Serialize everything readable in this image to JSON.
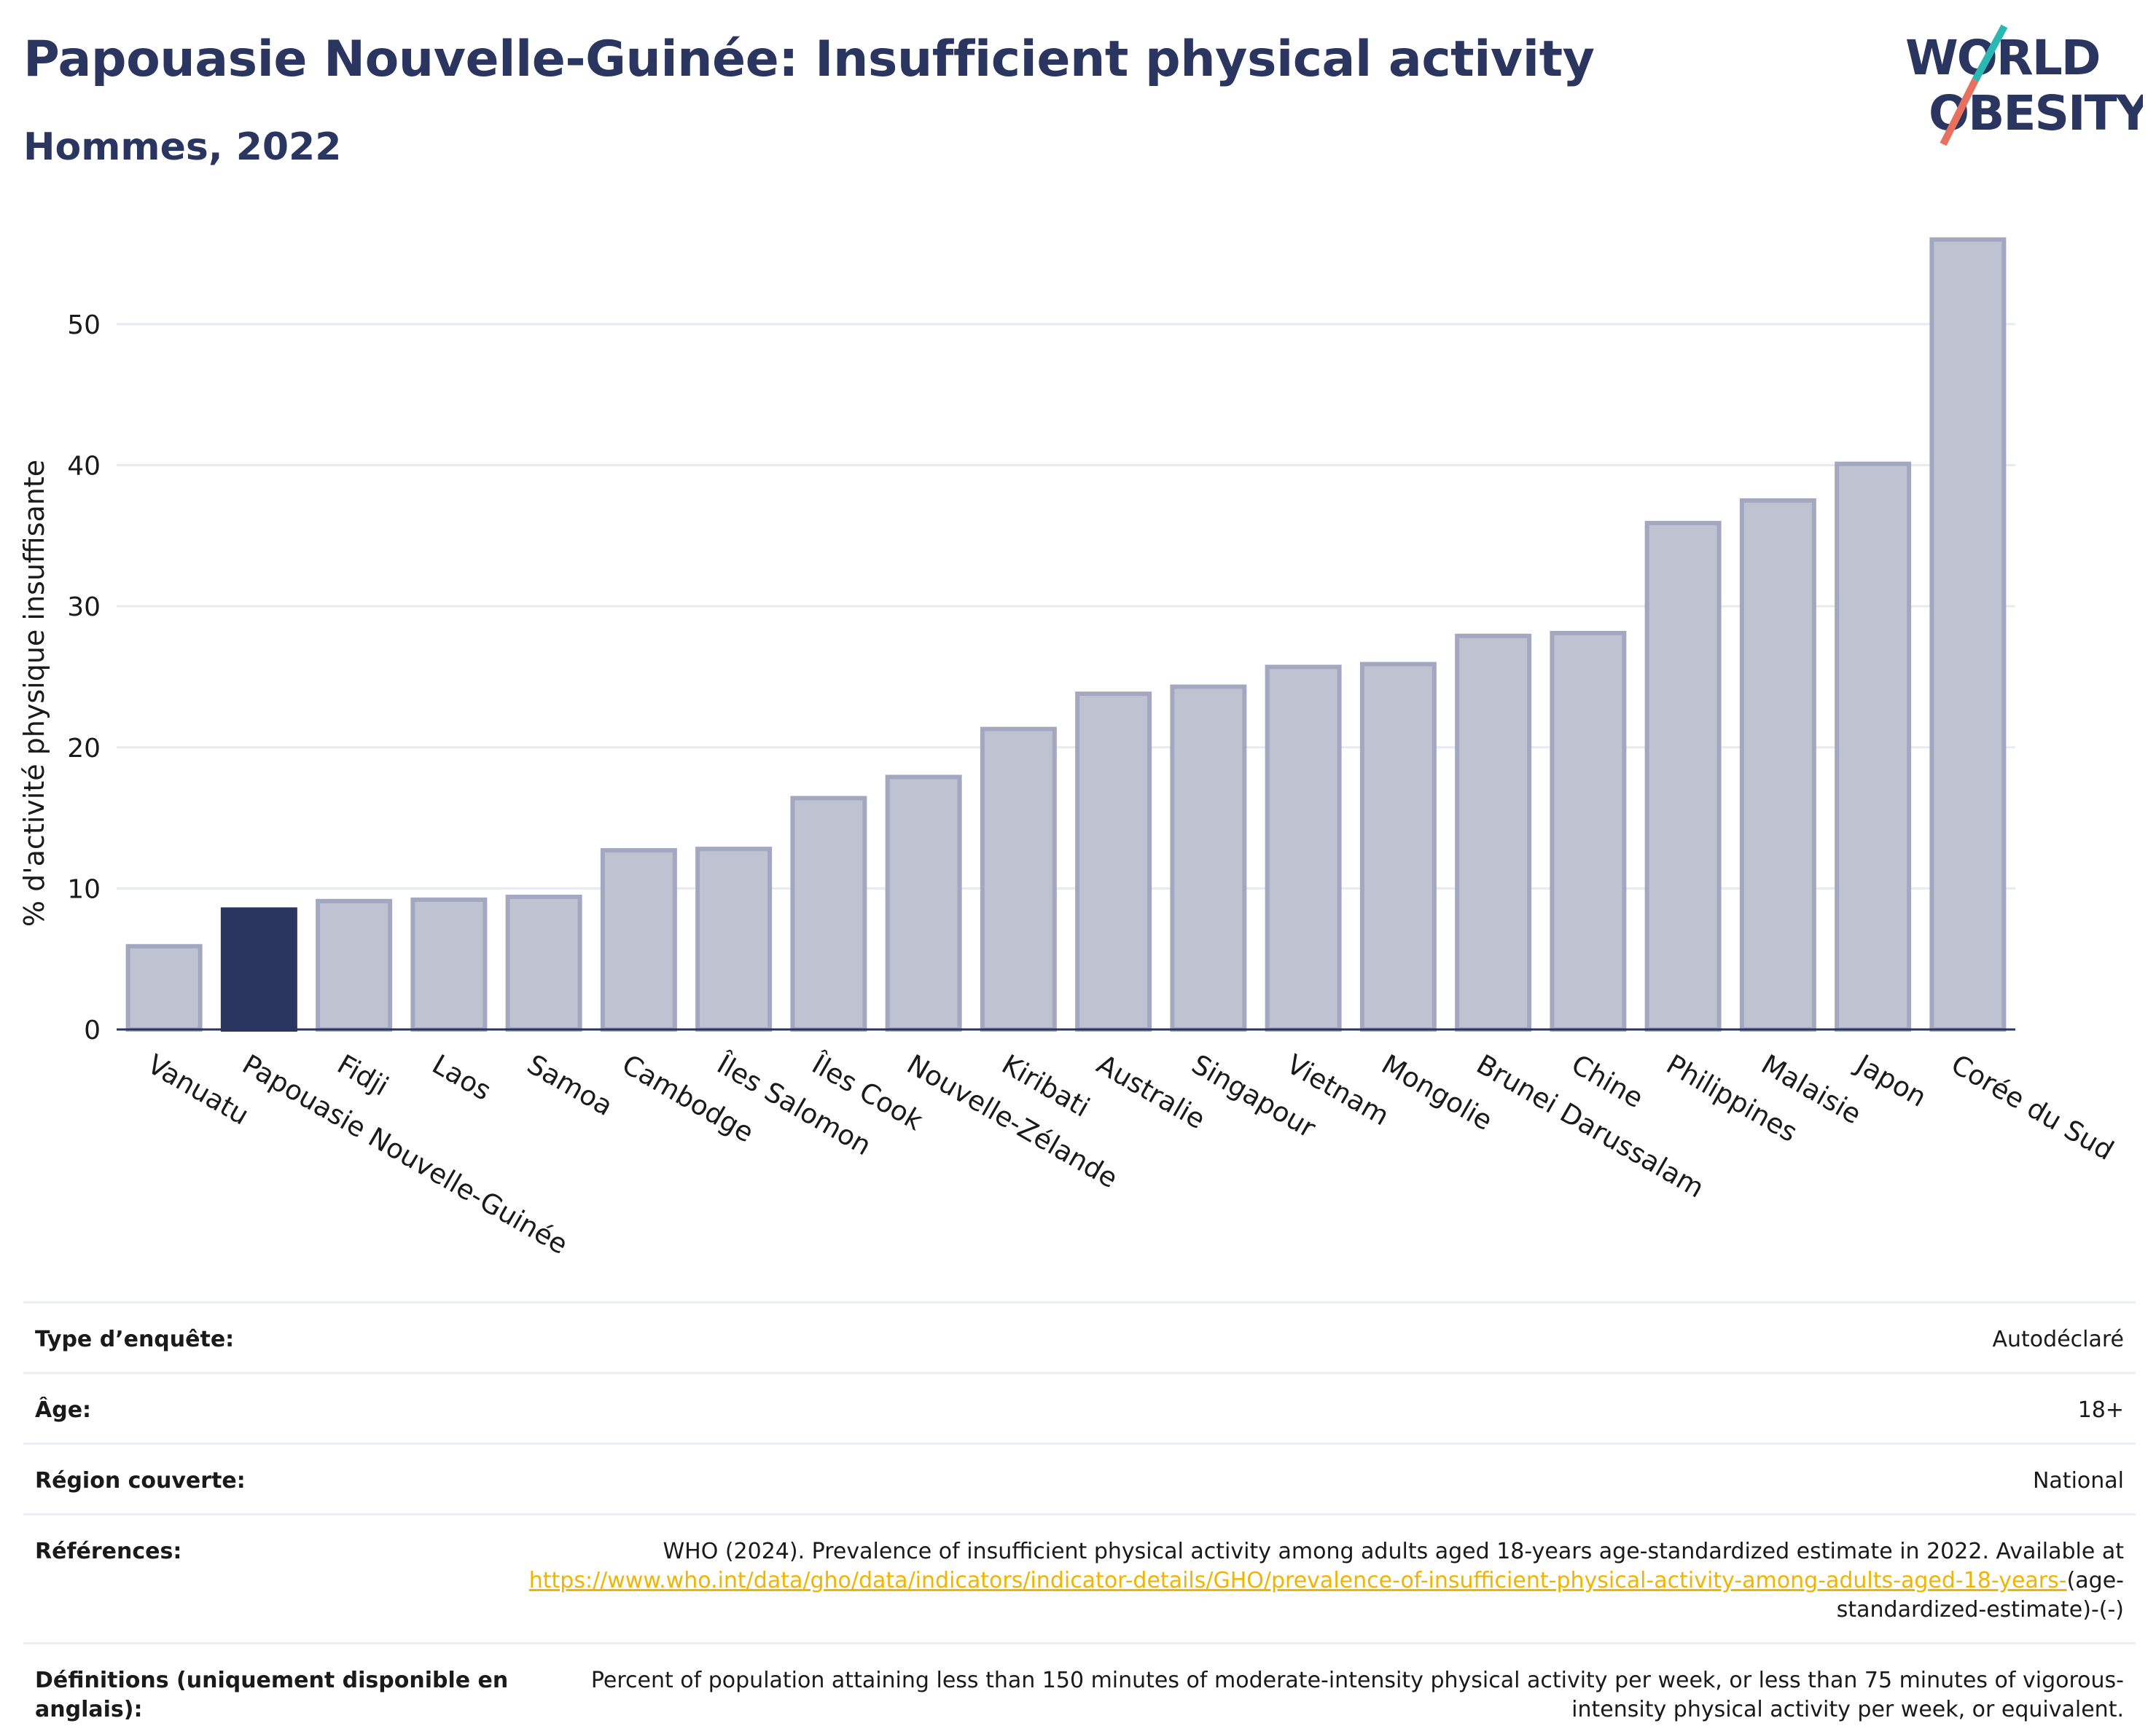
{
  "header": {
    "title": "Papouasie Nouvelle-Guinée: Insufficient physical activity",
    "subtitle": "Hommes, 2022"
  },
  "logo": {
    "line1": "WORLD",
    "line2": "OBESITY",
    "colors": {
      "text": "#2a3560",
      "slash_top": "#2bb8b3",
      "slash_bottom": "#e8705f"
    }
  },
  "colors": {
    "bar": "#bfc2d0",
    "bar_stroke": "#a3a8c0",
    "highlight": "#2a3560",
    "grid": "#e8eaf1",
    "axis": "#2a3560",
    "link": "#f0b400"
  },
  "chart_data": {
    "type": "bar",
    "title": "",
    "ylabel": "% d'activité physique insuffisante",
    "xlabel": "",
    "ylim": [
      0,
      58
    ],
    "yticks": [
      0,
      10,
      20,
      30,
      40,
      50
    ],
    "grid": true,
    "highlight": "Papouasie Nouvelle-Guinée",
    "categories": [
      "Vanuatu",
      "Papouasie Nouvelle-Guinée",
      "Fidji",
      "Laos",
      "Samoa",
      "Cambodge",
      "Îles Salomon",
      "Îles Cook",
      "Nouvelle-Zélande",
      "Kiribati",
      "Australie",
      "Singapour",
      "Vietnam",
      "Mongolie",
      "Brunei Darussalam",
      "Chine",
      "Philippines",
      "Malaisie",
      "Japon",
      "Corée du Sud"
    ],
    "values": [
      5.9,
      8.5,
      9.1,
      9.2,
      9.4,
      12.7,
      12.8,
      16.4,
      17.9,
      21.3,
      23.8,
      24.3,
      25.7,
      25.9,
      27.9,
      28.1,
      35.9,
      37.5,
      40.1,
      56.0
    ]
  },
  "info": {
    "rows": [
      {
        "label": "Type d’enquête:",
        "value": "Autodéclaré"
      },
      {
        "label": "Âge:",
        "value": "18+"
      },
      {
        "label": "Région couverte:",
        "value": "National"
      }
    ],
    "references": {
      "label": "Références:",
      "text_before": "WHO (2024). Prevalence of insufficient physical activity among adults aged 18-years age-standardized estimate in 2022. Available at",
      "link": "https://www.who.int/data/gho/data/indicators/indicator-details/GHO/prevalence-of-insufficient-physical-activity-among-adults-aged-18-years-",
      "text_after": "(age-standardized-estimate)-(-)"
    },
    "definitions": {
      "label": "Définitions (uniquement disponible en anglais):",
      "value": "Percent of population attaining less than 150 minutes of moderate-intensity physical activity per week, or less than 75 minutes of vigorous-intensity physical activity per week, or equivalent."
    }
  }
}
